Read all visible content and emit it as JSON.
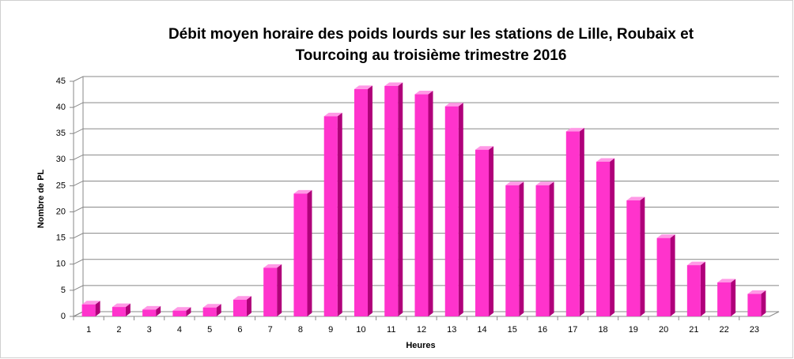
{
  "chart_data": {
    "type": "bar3d",
    "title": [
      "Débit moyen horaire des poids lourds sur les stations de Lille, Roubaix et",
      "Tourcoing  au troisième  trimestre 2016"
    ],
    "x_label": "Heures",
    "y_label": "Nombre de PL",
    "categories": [
      "1",
      "2",
      "3",
      "4",
      "5",
      "6",
      "7",
      "8",
      "9",
      "10",
      "11",
      "12",
      "13",
      "14",
      "15",
      "16",
      "17",
      "18",
      "19",
      "20",
      "21",
      "22",
      "23"
    ],
    "values": [
      2.3,
      1.8,
      1.3,
      1.1,
      1.7,
      3.2,
      9.3,
      23.5,
      38.3,
      43.5,
      44.1,
      42.5,
      40.2,
      31.9,
      25.1,
      25.1,
      35.4,
      29.6,
      22.2,
      15.0,
      9.8,
      6.5,
      4.3
    ],
    "color": "#ff33cc",
    "ylim": [
      0,
      45
    ],
    "yticks": [
      0,
      5,
      10,
      15,
      20,
      25,
      30,
      35,
      40,
      45
    ],
    "grid": true
  }
}
